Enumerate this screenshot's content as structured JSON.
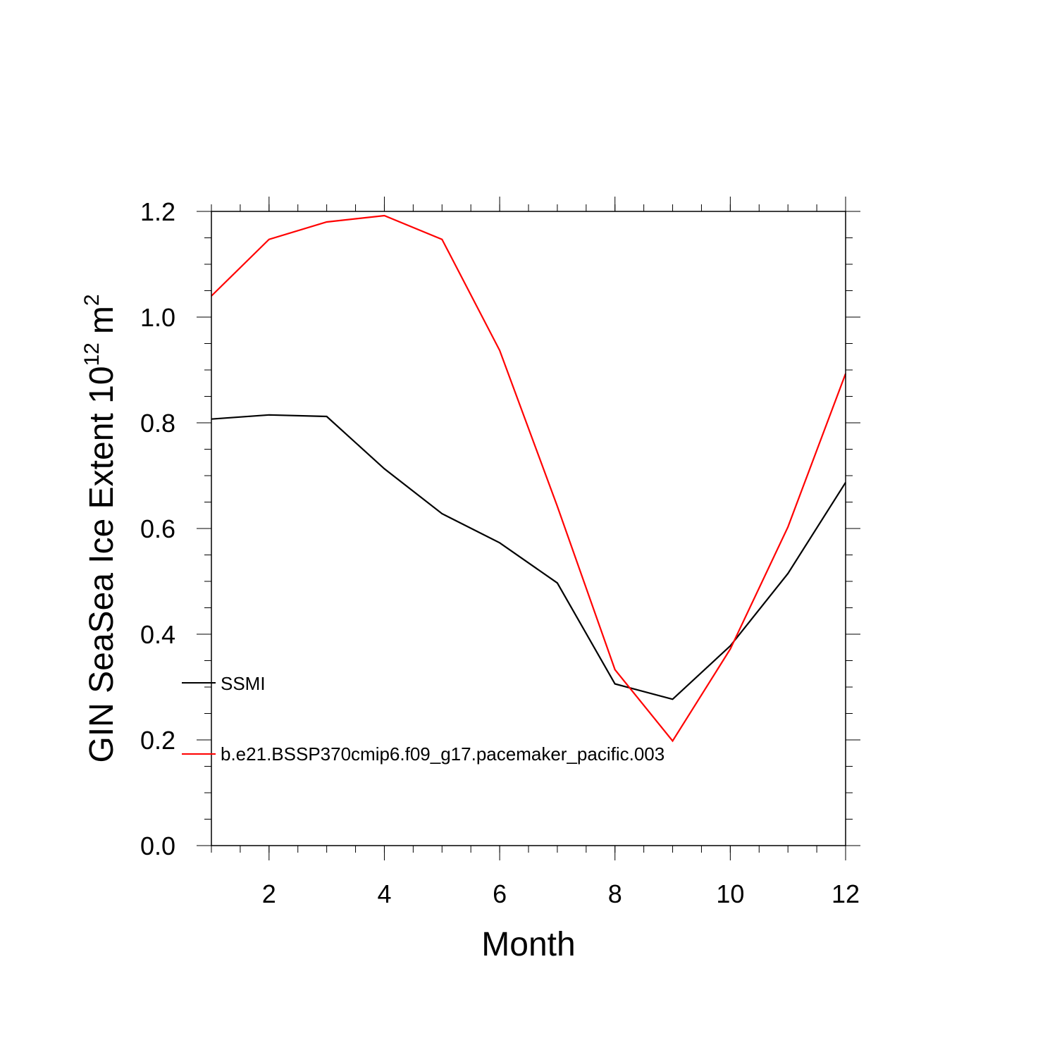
{
  "chart_data": {
    "type": "line",
    "x": [
      1,
      2,
      3,
      4,
      5,
      6,
      7,
      8,
      9,
      10,
      11,
      12
    ],
    "series": [
      {
        "name": "SSMI",
        "color": "#000000",
        "values": [
          0.807,
          0.815,
          0.812,
          0.713,
          0.628,
          0.573,
          0.497,
          0.306,
          0.277,
          0.378,
          0.515,
          0.687
        ]
      },
      {
        "name": "b.e21.BSSP370cmip6.f09_g17.pacemaker_pacific.003",
        "color": "#ff0000",
        "values": [
          1.04,
          1.147,
          1.18,
          1.192,
          1.147,
          0.937,
          0.642,
          0.333,
          0.198,
          0.372,
          0.603,
          0.893
        ]
      }
    ],
    "xlabel": "Month",
    "ylabel": {
      "main": "GIN SeaSea Ice Extent 10",
      "exp": "12",
      "unit": "m",
      "unit_exp": "2"
    },
    "xlim": [
      1,
      12
    ],
    "ylim": [
      0,
      1.2
    ],
    "x_ticks": [
      "2",
      "4",
      "6",
      "8",
      "10",
      "12"
    ],
    "y_ticks": [
      "0.0",
      "0.2",
      "0.4",
      "0.6",
      "0.8",
      "1.0",
      "1.2"
    ],
    "grid": false,
    "legend_position": "lower-left inside"
  }
}
